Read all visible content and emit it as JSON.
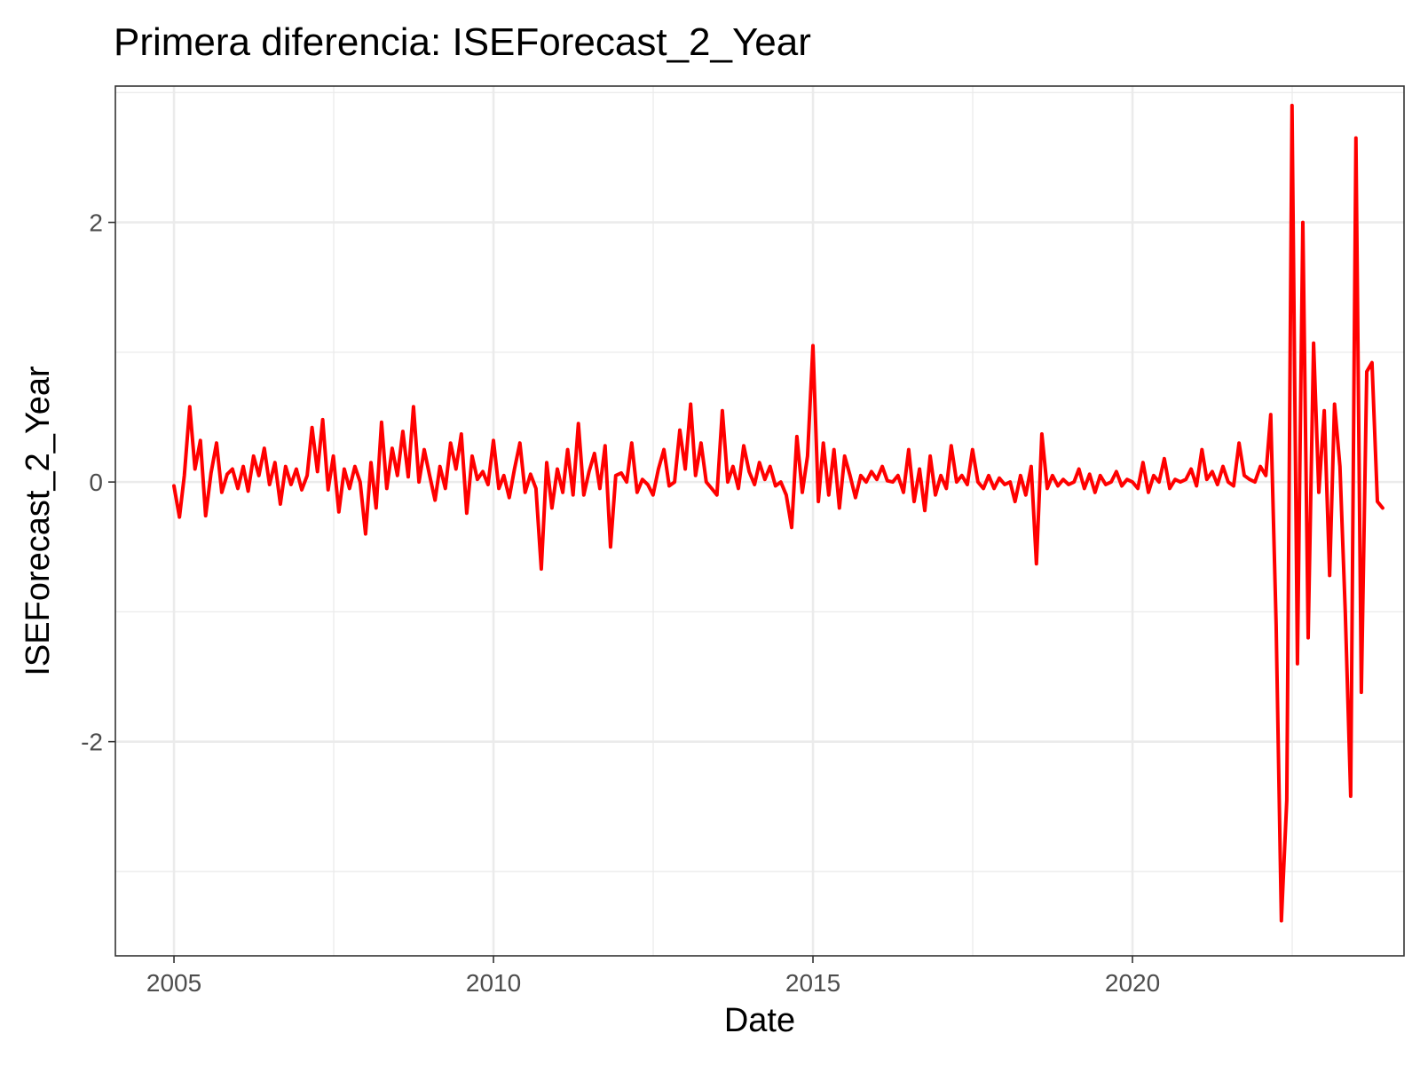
{
  "chart_data": {
    "type": "line",
    "title": "Primera diferencia: ISEForecast_2_Year",
    "xlabel": "Date",
    "ylabel": "ISEForecast_2_Year",
    "x_range": [
      "2004-02-01",
      "2024-04-01"
    ],
    "y_range": [
      -3.65,
      3.05
    ],
    "x_ticks": [
      {
        "value": "2005-01-01",
        "label": "2005"
      },
      {
        "value": "2010-01-01",
        "label": "2010"
      },
      {
        "value": "2015-01-01",
        "label": "2015"
      },
      {
        "value": "2020-01-01",
        "label": "2020"
      }
    ],
    "y_ticks": [
      {
        "value": -2,
        "label": "-2"
      },
      {
        "value": 0,
        "label": "0"
      },
      {
        "value": 2,
        "label": "2"
      }
    ],
    "grid": true,
    "legend": "none",
    "colors": {
      "line": "#ff0000",
      "grid": "#ebebeb",
      "panel_border": "#333333"
    },
    "series": [
      {
        "points": [
          [
            "2005-01-01",
            -0.03
          ],
          [
            "2005-02-01",
            -0.27
          ],
          [
            "2005-03-01",
            0.05
          ],
          [
            "2005-04-01",
            0.58
          ],
          [
            "2005-05-01",
            0.1
          ],
          [
            "2005-06-01",
            0.32
          ],
          [
            "2005-07-01",
            -0.26
          ],
          [
            "2005-08-01",
            0.07
          ],
          [
            "2005-09-01",
            0.3
          ],
          [
            "2005-10-01",
            -0.08
          ],
          [
            "2005-11-01",
            0.06
          ],
          [
            "2005-12-01",
            0.1
          ],
          [
            "2006-01-01",
            -0.05
          ],
          [
            "2006-02-01",
            0.12
          ],
          [
            "2006-03-01",
            -0.07
          ],
          [
            "2006-04-01",
            0.2
          ],
          [
            "2006-05-01",
            0.05
          ],
          [
            "2006-06-01",
            0.26
          ],
          [
            "2006-07-01",
            -0.02
          ],
          [
            "2006-08-01",
            0.15
          ],
          [
            "2006-09-01",
            -0.17
          ],
          [
            "2006-10-01",
            0.12
          ],
          [
            "2006-11-01",
            -0.02
          ],
          [
            "2006-12-01",
            0.1
          ],
          [
            "2007-01-01",
            -0.06
          ],
          [
            "2007-02-01",
            0.05
          ],
          [
            "2007-03-01",
            0.42
          ],
          [
            "2007-04-01",
            0.08
          ],
          [
            "2007-05-01",
            0.48
          ],
          [
            "2007-06-01",
            -0.06
          ],
          [
            "2007-07-01",
            0.2
          ],
          [
            "2007-08-01",
            -0.23
          ],
          [
            "2007-09-01",
            0.1
          ],
          [
            "2007-10-01",
            -0.05
          ],
          [
            "2007-11-01",
            0.12
          ],
          [
            "2007-12-01",
            0.0
          ],
          [
            "2008-01-01",
            -0.4
          ],
          [
            "2008-02-01",
            0.15
          ],
          [
            "2008-03-01",
            -0.2
          ],
          [
            "2008-04-01",
            0.46
          ],
          [
            "2008-05-01",
            -0.05
          ],
          [
            "2008-06-01",
            0.26
          ],
          [
            "2008-07-01",
            0.05
          ],
          [
            "2008-08-01",
            0.39
          ],
          [
            "2008-09-01",
            0.04
          ],
          [
            "2008-10-01",
            0.58
          ],
          [
            "2008-11-01",
            0.0
          ],
          [
            "2008-12-01",
            0.25
          ],
          [
            "2009-01-01",
            0.05
          ],
          [
            "2009-02-01",
            -0.14
          ],
          [
            "2009-03-01",
            0.12
          ],
          [
            "2009-04-01",
            -0.05
          ],
          [
            "2009-05-01",
            0.3
          ],
          [
            "2009-06-01",
            0.1
          ],
          [
            "2009-07-01",
            0.37
          ],
          [
            "2009-08-01",
            -0.24
          ],
          [
            "2009-09-01",
            0.2
          ],
          [
            "2009-10-01",
            0.02
          ],
          [
            "2009-11-01",
            0.08
          ],
          [
            "2009-12-01",
            -0.02
          ],
          [
            "2010-01-01",
            0.32
          ],
          [
            "2010-02-01",
            -0.05
          ],
          [
            "2010-03-01",
            0.05
          ],
          [
            "2010-04-01",
            -0.12
          ],
          [
            "2010-05-01",
            0.1
          ],
          [
            "2010-06-01",
            0.3
          ],
          [
            "2010-07-01",
            -0.08
          ],
          [
            "2010-08-01",
            0.06
          ],
          [
            "2010-09-01",
            -0.05
          ],
          [
            "2010-10-01",
            -0.67
          ],
          [
            "2010-11-01",
            0.15
          ],
          [
            "2010-12-01",
            -0.2
          ],
          [
            "2011-01-01",
            0.1
          ],
          [
            "2011-02-01",
            -0.08
          ],
          [
            "2011-03-01",
            0.25
          ],
          [
            "2011-04-01",
            -0.1
          ],
          [
            "2011-05-01",
            0.45
          ],
          [
            "2011-06-01",
            -0.1
          ],
          [
            "2011-07-01",
            0.08
          ],
          [
            "2011-08-01",
            0.22
          ],
          [
            "2011-09-01",
            -0.05
          ],
          [
            "2011-10-01",
            0.28
          ],
          [
            "2011-11-01",
            -0.5
          ],
          [
            "2011-12-01",
            0.05
          ],
          [
            "2012-01-01",
            0.07
          ],
          [
            "2012-02-01",
            0.0
          ],
          [
            "2012-03-01",
            0.3
          ],
          [
            "2012-04-01",
            -0.08
          ],
          [
            "2012-05-01",
            0.02
          ],
          [
            "2012-06-01",
            -0.02
          ],
          [
            "2012-07-01",
            -0.1
          ],
          [
            "2012-08-01",
            0.1
          ],
          [
            "2012-09-01",
            0.25
          ],
          [
            "2012-10-01",
            -0.03
          ],
          [
            "2012-11-01",
            0.0
          ],
          [
            "2012-12-01",
            0.4
          ],
          [
            "2013-01-01",
            0.1
          ],
          [
            "2013-02-01",
            0.6
          ],
          [
            "2013-03-01",
            0.05
          ],
          [
            "2013-04-01",
            0.3
          ],
          [
            "2013-05-01",
            0.0
          ],
          [
            "2013-06-01",
            -0.05
          ],
          [
            "2013-07-01",
            -0.1
          ],
          [
            "2013-08-01",
            0.55
          ],
          [
            "2013-09-01",
            0.0
          ],
          [
            "2013-10-01",
            0.12
          ],
          [
            "2013-11-01",
            -0.05
          ],
          [
            "2013-12-01",
            0.28
          ],
          [
            "2014-01-01",
            0.08
          ],
          [
            "2014-02-01",
            -0.02
          ],
          [
            "2014-03-01",
            0.15
          ],
          [
            "2014-04-01",
            0.02
          ],
          [
            "2014-05-01",
            0.12
          ],
          [
            "2014-06-01",
            -0.03
          ],
          [
            "2014-07-01",
            0.0
          ],
          [
            "2014-08-01",
            -0.1
          ],
          [
            "2014-09-01",
            -0.35
          ],
          [
            "2014-10-01",
            0.35
          ],
          [
            "2014-11-01",
            -0.08
          ],
          [
            "2014-12-01",
            0.2
          ],
          [
            "2015-01-01",
            1.05
          ],
          [
            "2015-02-01",
            -0.15
          ],
          [
            "2015-03-01",
            0.3
          ],
          [
            "2015-04-01",
            -0.1
          ],
          [
            "2015-05-01",
            0.25
          ],
          [
            "2015-06-01",
            -0.2
          ],
          [
            "2015-07-01",
            0.2
          ],
          [
            "2015-08-01",
            0.05
          ],
          [
            "2015-09-01",
            -0.12
          ],
          [
            "2015-10-01",
            0.05
          ],
          [
            "2015-11-01",
            0.0
          ],
          [
            "2015-12-01",
            0.08
          ],
          [
            "2016-01-01",
            0.02
          ],
          [
            "2016-02-01",
            0.12
          ],
          [
            "2016-03-01",
            0.01
          ],
          [
            "2016-04-01",
            0.0
          ],
          [
            "2016-05-01",
            0.05
          ],
          [
            "2016-06-01",
            -0.08
          ],
          [
            "2016-07-01",
            0.25
          ],
          [
            "2016-08-01",
            -0.15
          ],
          [
            "2016-09-01",
            0.1
          ],
          [
            "2016-10-01",
            -0.22
          ],
          [
            "2016-11-01",
            0.2
          ],
          [
            "2016-12-01",
            -0.1
          ],
          [
            "2017-01-01",
            0.05
          ],
          [
            "2017-02-01",
            -0.05
          ],
          [
            "2017-03-01",
            0.28
          ],
          [
            "2017-04-01",
            0.0
          ],
          [
            "2017-05-01",
            0.05
          ],
          [
            "2017-06-01",
            -0.02
          ],
          [
            "2017-07-01",
            0.25
          ],
          [
            "2017-08-01",
            0.0
          ],
          [
            "2017-09-01",
            -0.05
          ],
          [
            "2017-10-01",
            0.05
          ],
          [
            "2017-11-01",
            -0.05
          ],
          [
            "2017-12-01",
            0.03
          ],
          [
            "2018-01-01",
            -0.02
          ],
          [
            "2018-02-01",
            0.0
          ],
          [
            "2018-03-01",
            -0.15
          ],
          [
            "2018-04-01",
            0.05
          ],
          [
            "2018-05-01",
            -0.1
          ],
          [
            "2018-06-01",
            0.12
          ],
          [
            "2018-07-01",
            -0.63
          ],
          [
            "2018-08-01",
            0.37
          ],
          [
            "2018-09-01",
            -0.05
          ],
          [
            "2018-10-01",
            0.05
          ],
          [
            "2018-11-01",
            -0.03
          ],
          [
            "2018-12-01",
            0.02
          ],
          [
            "2019-01-01",
            -0.02
          ],
          [
            "2019-02-01",
            0.0
          ],
          [
            "2019-03-01",
            0.1
          ],
          [
            "2019-04-01",
            -0.05
          ],
          [
            "2019-05-01",
            0.06
          ],
          [
            "2019-06-01",
            -0.08
          ],
          [
            "2019-07-01",
            0.05
          ],
          [
            "2019-08-01",
            -0.02
          ],
          [
            "2019-09-01",
            0.0
          ],
          [
            "2019-10-01",
            0.08
          ],
          [
            "2019-11-01",
            -0.03
          ],
          [
            "2019-12-01",
            0.02
          ],
          [
            "2020-01-01",
            0.0
          ],
          [
            "2020-02-01",
            -0.05
          ],
          [
            "2020-03-01",
            0.15
          ],
          [
            "2020-04-01",
            -0.08
          ],
          [
            "2020-05-01",
            0.05
          ],
          [
            "2020-06-01",
            0.0
          ],
          [
            "2020-07-01",
            0.18
          ],
          [
            "2020-08-01",
            -0.05
          ],
          [
            "2020-09-01",
            0.02
          ],
          [
            "2020-10-01",
            0.0
          ],
          [
            "2020-11-01",
            0.02
          ],
          [
            "2020-12-01",
            0.1
          ],
          [
            "2021-01-01",
            -0.03
          ],
          [
            "2021-02-01",
            0.25
          ],
          [
            "2021-03-01",
            0.02
          ],
          [
            "2021-04-01",
            0.08
          ],
          [
            "2021-05-01",
            -0.02
          ],
          [
            "2021-06-01",
            0.12
          ],
          [
            "2021-07-01",
            0.0
          ],
          [
            "2021-08-01",
            -0.03
          ],
          [
            "2021-09-01",
            0.3
          ],
          [
            "2021-10-01",
            0.05
          ],
          [
            "2021-11-01",
            0.02
          ],
          [
            "2021-12-01",
            0.0
          ],
          [
            "2022-01-01",
            0.12
          ],
          [
            "2022-02-01",
            0.05
          ],
          [
            "2022-03-01",
            0.52
          ],
          [
            "2022-04-01",
            -1.1
          ],
          [
            "2022-05-01",
            -3.38
          ],
          [
            "2022-06-01",
            -2.45
          ],
          [
            "2022-07-01",
            2.9
          ],
          [
            "2022-08-01",
            -1.4
          ],
          [
            "2022-09-01",
            2.0
          ],
          [
            "2022-10-01",
            -1.2
          ],
          [
            "2022-11-01",
            1.07
          ],
          [
            "2022-12-01",
            -0.08
          ],
          [
            "2023-01-01",
            0.55
          ],
          [
            "2023-02-01",
            -0.72
          ],
          [
            "2023-03-01",
            0.6
          ],
          [
            "2023-04-01",
            0.12
          ],
          [
            "2023-05-01",
            -1.0
          ],
          [
            "2023-06-01",
            -2.42
          ],
          [
            "2023-07-01",
            2.65
          ],
          [
            "2023-08-01",
            -1.62
          ],
          [
            "2023-09-01",
            0.85
          ],
          [
            "2023-10-01",
            0.92
          ],
          [
            "2023-11-01",
            -0.15
          ],
          [
            "2023-12-01",
            -0.2
          ]
        ]
      }
    ]
  }
}
